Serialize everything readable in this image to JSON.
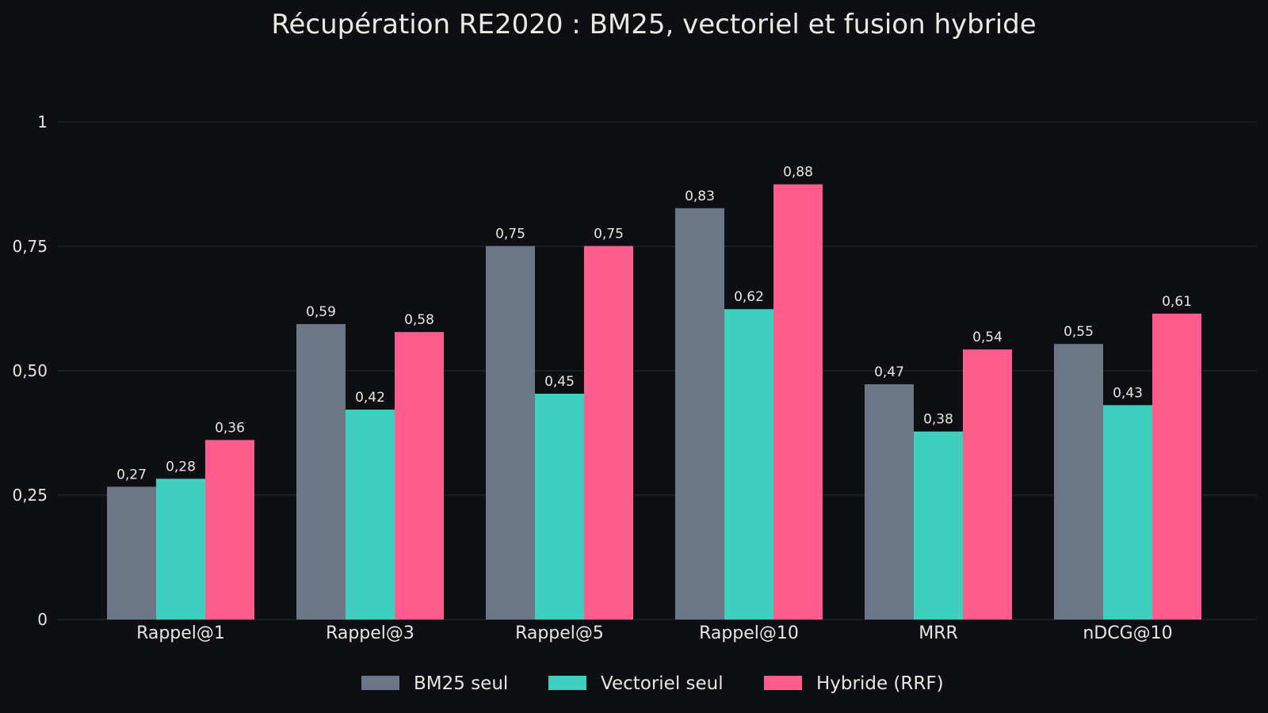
{
  "chart_data": {
    "type": "bar",
    "title": "Récupération RE2020 : BM25, vectoriel et fusion hybride",
    "xlabel": "",
    "ylabel": "",
    "ylim": [
      0,
      1.15
    ],
    "yticks": [
      0,
      0.25,
      0.5,
      0.75,
      1
    ],
    "ytick_labels": [
      "0",
      "0,25",
      "0,50",
      "0,75",
      "1"
    ],
    "grid": true,
    "legend_position": "bottom-center",
    "categories": [
      "Rappel@1",
      "Rappel@3",
      "Rappel@5",
      "Rappel@10",
      "MRR",
      "nDCG@10"
    ],
    "series": [
      {
        "name": "BM25 seul",
        "color": "#6b7787",
        "values": [
          0.267,
          0.594,
          0.751,
          0.827,
          0.473,
          0.554
        ],
        "labels": [
          "0,27",
          "0,59",
          "0,75",
          "0,83",
          "0,47",
          "0,55"
        ]
      },
      {
        "name": "Vectoriel seul",
        "color": "#3ecfbf",
        "values": [
          0.283,
          0.422,
          0.454,
          0.624,
          0.378,
          0.431
        ],
        "labels": [
          "0,28",
          "0,42",
          "0,45",
          "0,62",
          "0,38",
          "0,43"
        ]
      },
      {
        "name": "Hybride (RRF)",
        "color": "#ff5c8e",
        "values": [
          0.361,
          0.578,
          0.751,
          0.875,
          0.543,
          0.615
        ],
        "labels": [
          "0,36",
          "0,58",
          "0,75",
          "0,88",
          "0,54",
          "0,61"
        ]
      }
    ]
  }
}
